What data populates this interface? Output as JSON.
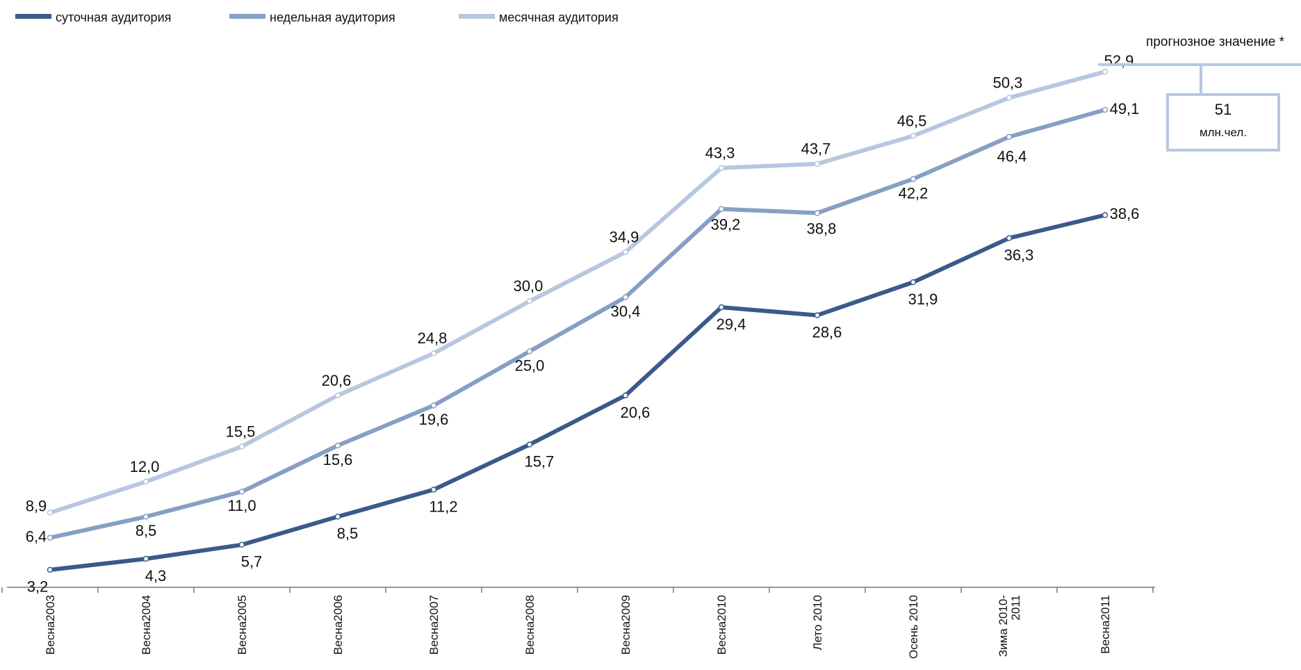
{
  "chart_data": {
    "type": "line",
    "title": "",
    "xlabel": "",
    "ylabel": "",
    "ylim": [
      0,
      60
    ],
    "grid": false,
    "legend_position": "top-left",
    "categories": [
      [
        "Весна2003"
      ],
      [
        "Весна2004"
      ],
      [
        "Весна2005"
      ],
      [
        "Весна2006"
      ],
      [
        "Весна2007"
      ],
      [
        "Весна2008"
      ],
      [
        "Весна2009"
      ],
      [
        "Весна2010"
      ],
      [
        "Лето 2010"
      ],
      [
        "Осень 2010"
      ],
      [
        "Зима 2010-",
        "2011"
      ],
      [
        "Весна2011"
      ]
    ],
    "series": [
      {
        "name": "суточная аудитория",
        "color": "#3b5a8a",
        "values": [
          3.2,
          4.3,
          5.7,
          8.5,
          11.2,
          15.7,
          20.6,
          29.4,
          28.6,
          31.9,
          36.3,
          38.6
        ],
        "labels": [
          "3,2",
          "4,3",
          "5,7",
          "8,5",
          "11,2",
          "15,7",
          "20,6",
          "29,4",
          "28,6",
          "31,9",
          "36,3",
          "38,6"
        ]
      },
      {
        "name": "недельная аудитория",
        "color": "#869fc4",
        "values": [
          6.4,
          8.5,
          11.0,
          15.6,
          19.6,
          25.0,
          30.4,
          39.2,
          38.8,
          42.2,
          46.4,
          49.1
        ],
        "labels": [
          "6,4",
          "8,5",
          "11,0",
          "15,6",
          "19,6",
          "25,0",
          "30,4",
          "39,2",
          "38,8",
          "42,2",
          "46,4",
          "49,1"
        ]
      },
      {
        "name": "месячная аудитория",
        "color": "#b7c7df",
        "values": [
          8.9,
          12.0,
          15.5,
          20.6,
          24.8,
          30.0,
          34.9,
          43.3,
          43.7,
          46.5,
          50.3,
          52.9
        ],
        "labels": [
          "8,9",
          "12,0",
          "15,5",
          "20,6",
          "24,8",
          "30,0",
          "34,9",
          "43,3",
          "43,7",
          "46,5",
          "50,3",
          "52,9"
        ]
      }
    ],
    "annotation": {
      "heading": "прогнозное значение *",
      "value": "51",
      "unit": "млн.чел.",
      "color": "#b7c7df"
    }
  }
}
